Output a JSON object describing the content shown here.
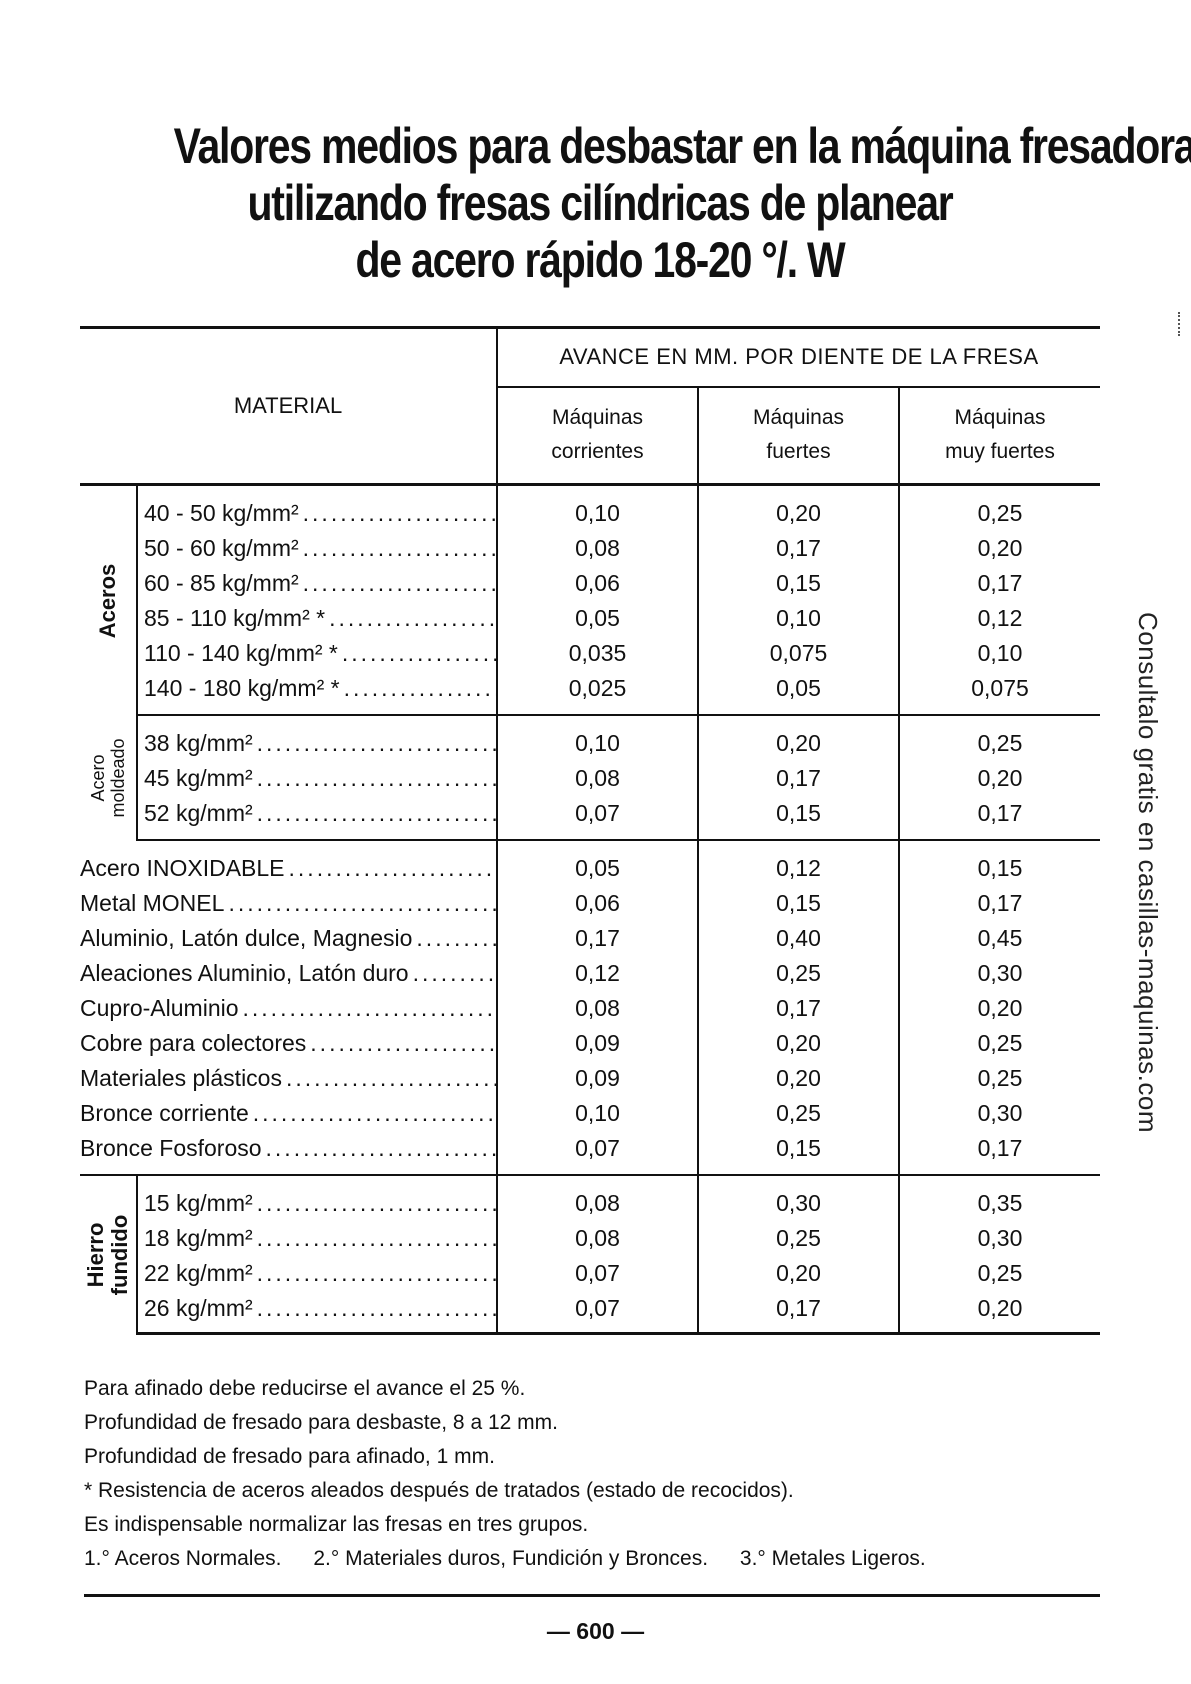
{
  "title": {
    "line1": "Valores medios para desbastar en la máquina fresadora",
    "line2": "utilizando fresas cilíndricas de planear",
    "line3": "de acero rápido 18-20 °/. W"
  },
  "table": {
    "header_material": "MATERIAL",
    "header_avance": "AVANCE EN MM. POR DIENTE DE LA FRESA",
    "columns": [
      {
        "line1": "Máquinas",
        "line2": "corrientes"
      },
      {
        "line1": "Máquinas",
        "line2": "fuertes"
      },
      {
        "line1": "Máquinas",
        "line2": "muy fuertes"
      }
    ],
    "aceros": {
      "group": "Aceros",
      "rows": [
        {
          "material": "40 -  50 kg/mm²",
          "v": [
            "0,10",
            "0,20",
            "0,25"
          ]
        },
        {
          "material": "50 -  60 kg/mm²",
          "v": [
            "0,08",
            "0,17",
            "0,20"
          ]
        },
        {
          "material": "60 -  85 kg/mm²",
          "v": [
            "0,06",
            "0,15",
            "0,17"
          ]
        },
        {
          "material": "85 - 110 kg/mm² *",
          "v": [
            "0,05",
            "0,10",
            "0,12"
          ]
        },
        {
          "material": "110 - 140 kg/mm² *",
          "v": [
            "0,035",
            "0,075",
            "0,10"
          ]
        },
        {
          "material": "140 - 180 kg/mm² *",
          "v": [
            "0,025",
            "0,05",
            "0,075"
          ]
        }
      ]
    },
    "acero_moldeado": {
      "group_line1": "Acero",
      "group_line2": "moldeado",
      "rows": [
        {
          "material": "38 kg/mm²",
          "v": [
            "0,10",
            "0,20",
            "0,25"
          ]
        },
        {
          "material": "45 kg/mm²",
          "v": [
            "0,08",
            "0,17",
            "0,20"
          ]
        },
        {
          "material": "52 kg/mm²",
          "v": [
            "0,07",
            "0,15",
            "0,17"
          ]
        }
      ]
    },
    "otros": {
      "rows": [
        {
          "material": "Acero INOXIDABLE",
          "v": [
            "0,05",
            "0,12",
            "0,15"
          ]
        },
        {
          "material": "Metal MONEL",
          "v": [
            "0,06",
            "0,15",
            "0,17"
          ]
        },
        {
          "material": "Aluminio, Latón dulce, Magnesio",
          "v": [
            "0,17",
            "0,40",
            "0,45"
          ]
        },
        {
          "material": "Aleaciones Aluminio, Latón duro",
          "v": [
            "0,12",
            "0,25",
            "0,30"
          ]
        },
        {
          "material": "Cupro-Aluminio",
          "v": [
            "0,08",
            "0,17",
            "0,20"
          ]
        },
        {
          "material": "Cobre para colectores",
          "v": [
            "0,09",
            "0,20",
            "0,25"
          ]
        },
        {
          "material": "Materiales plásticos",
          "v": [
            "0,09",
            "0,20",
            "0,25"
          ]
        },
        {
          "material": "Bronce corriente",
          "v": [
            "0,10",
            "0,25",
            "0,30"
          ]
        },
        {
          "material": "Bronce Fosforoso",
          "v": [
            "0,07",
            "0,15",
            "0,17"
          ]
        }
      ]
    },
    "hierro_fundido": {
      "group_line1": "Hierro",
      "group_line2": "fundido",
      "rows": [
        {
          "material": "15 kg/mm²",
          "v": [
            "0,08",
            "0,30",
            "0,35"
          ]
        },
        {
          "material": "18 kg/mm²",
          "v": [
            "0,08",
            "0,25",
            "0,30"
          ]
        },
        {
          "material": "22 kg/mm²",
          "v": [
            "0,07",
            "0,20",
            "0,25"
          ]
        },
        {
          "material": "26 kg/mm²",
          "v": [
            "0,07",
            "0,17",
            "0,20"
          ]
        }
      ]
    }
  },
  "notes": {
    "n1": "Para afinado debe reducirse el avance el 25 %.",
    "n2": "Profundidad de fresado para desbaste, 8 a 12 mm.",
    "n3": "Profundidad de fresado para afinado, 1 mm.",
    "n4": "* Resistencia de aceros aleados después de tratados (estado de recocidos).",
    "n5": "Es indispensable normalizar las fresas en tres grupos.",
    "grupos": [
      "1.° Aceros Normales.",
      "2.° Materiales duros, Fundición y Bronces.",
      "3.° Metales Ligeros."
    ]
  },
  "page_number": "— 600 —",
  "side_text": "Consultalo gratis en casillas-maquinas.com"
}
